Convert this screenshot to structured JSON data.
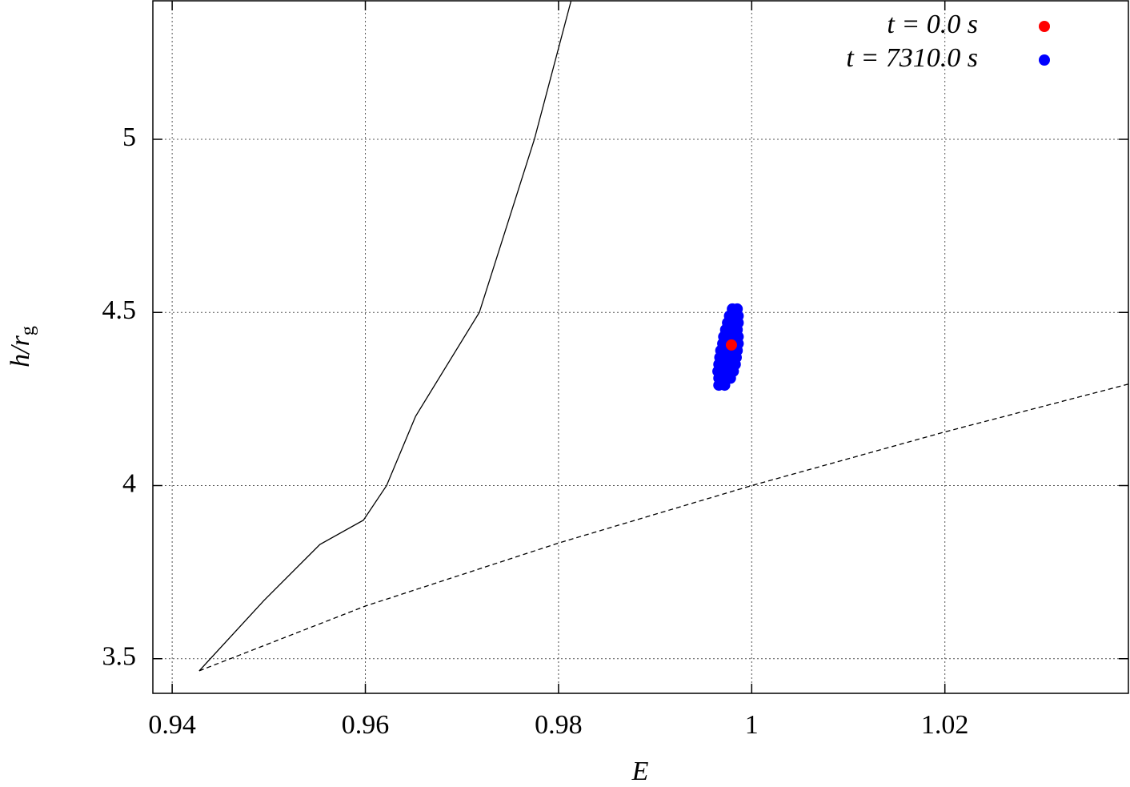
{
  "chart_data": {
    "type": "scatter",
    "xlabel": "E",
    "ylabel": {
      "main": "h/r",
      "sub": "g"
    },
    "xlim": [
      0.938,
      1.039
    ],
    "ylim": [
      3.4,
      5.4
    ],
    "xticks": [
      0.94,
      0.96,
      0.98,
      1,
      1.02
    ],
    "yticks": [
      3.5,
      4,
      4.5,
      5
    ],
    "grid": true,
    "legend": "top-right",
    "series": [
      {
        "style": "solid",
        "color": "#000000",
        "x": [
          0.9428,
          0.9495,
          0.9553,
          0.9598,
          0.9622,
          0.9652,
          0.9718,
          0.9775,
          0.9813
        ],
        "values": [
          3.465,
          3.668,
          3.83,
          3.9,
          4.0,
          4.2,
          4.5,
          5.0,
          5.4
        ]
      },
      {
        "style": "dashed",
        "color": "#000000",
        "x": [
          0.9428,
          0.96,
          0.98,
          1.0,
          1.02,
          1.039
        ],
        "values": [
          3.465,
          3.652,
          3.834,
          4.0,
          4.155,
          4.293
        ]
      },
      {
        "style": "points",
        "name": "t = 7310.0 s",
        "color": "#0000ff",
        "x": [
          0.9966,
          0.9972,
          0.9966,
          0.9972,
          0.9978,
          0.9965,
          0.9971,
          0.9977,
          0.9981,
          0.9966,
          0.9972,
          0.9978,
          0.9983,
          0.9967,
          0.9973,
          0.9979,
          0.9984,
          0.9968,
          0.9974,
          0.998,
          0.9985,
          0.997,
          0.9976,
          0.9982,
          0.9986,
          0.9971,
          0.9977,
          0.9983,
          0.9986,
          0.9973,
          0.9979,
          0.9985,
          0.9975,
          0.9981,
          0.9986,
          0.9977,
          0.9983,
          0.9986,
          0.998,
          0.9985
        ],
        "values": [
          4.29,
          4.29,
          4.31,
          4.31,
          4.31,
          4.33,
          4.33,
          4.33,
          4.33,
          4.35,
          4.35,
          4.35,
          4.35,
          4.37,
          4.37,
          4.37,
          4.37,
          4.39,
          4.39,
          4.39,
          4.39,
          4.41,
          4.41,
          4.41,
          4.41,
          4.43,
          4.43,
          4.43,
          4.43,
          4.45,
          4.45,
          4.45,
          4.47,
          4.47,
          4.47,
          4.49,
          4.49,
          4.49,
          4.51,
          4.51
        ]
      },
      {
        "style": "points",
        "name": "t = 0.0 s",
        "color": "#ff0000",
        "x": [
          0.9979
        ],
        "values": [
          4.406
        ]
      }
    ]
  }
}
